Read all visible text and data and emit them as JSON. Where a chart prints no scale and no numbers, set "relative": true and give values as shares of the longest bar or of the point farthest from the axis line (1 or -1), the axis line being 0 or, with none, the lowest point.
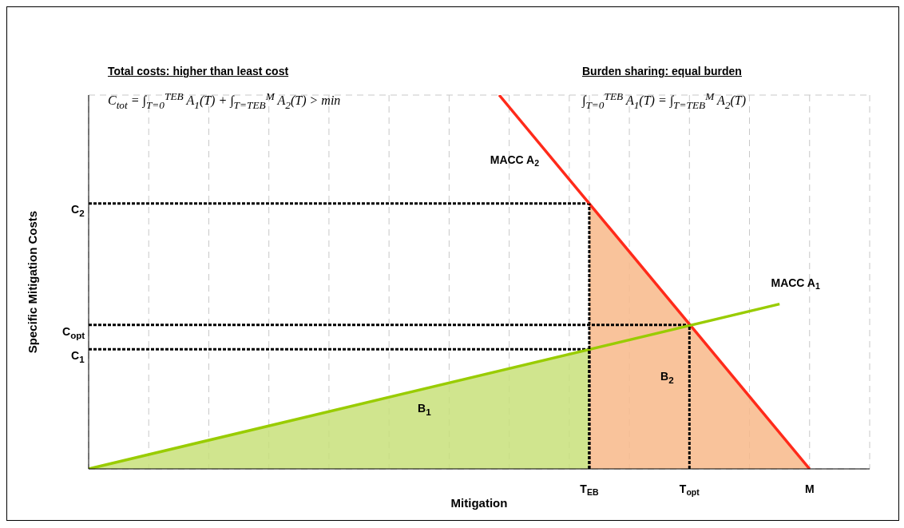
{
  "chart_data": {
    "type": "line",
    "relative": true,
    "xlabel": "Mitigation",
    "ylabel": "Specific Mitigation Costs",
    "grid": true,
    "legend": false,
    "categories": [
      null,
      null,
      null,
      null,
      null,
      null,
      null,
      null,
      null,
      null,
      null,
      null,
      null,
      null,
      null,
      null,
      null,
      null,
      null,
      null,
      null,
      null,
      null,
      null,
      null,
      null,
      null,
      null,
      null,
      null,
      null,
      null,
      null,
      null,
      null,
      null,
      null,
      null,
      null,
      null,
      null,
      null,
      null,
      null,
      null,
      null,
      null,
      null,
      null,
      null,
      "T$_{EB}$",
      null,
      null,
      null,
      null,
      null,
      null,
      null,
      null,
      null,
      "T$_{opt}$",
      null,
      null,
      null,
      null,
      null,
      null,
      null,
      null,
      null,
      null,
      null,
      "M",
      null,
      null,
      null,
      null,
      null,
      null
    ],
    "series": [
      {
        "type": "area",
        "color": "#c8e07a",
        "values": [
          0,
          null,
          null,
          null,
          null,
          null,
          null,
          null,
          null,
          null,
          null,
          null,
          null,
          null,
          null,
          null,
          null,
          null,
          null,
          null,
          null,
          null,
          null,
          null,
          null,
          null,
          null,
          null,
          null,
          null,
          null,
          null,
          null,
          null,
          null,
          null,
          null,
          null,
          null,
          null,
          null,
          null,
          null,
          null,
          null,
          null,
          null,
          null,
          null,
          null,
          0.32,
          null,
          null,
          null,
          null,
          null,
          null,
          null,
          null,
          null,
          null,
          null,
          null,
          null,
          null,
          null,
          null,
          null,
          null,
          null,
          null,
          null,
          null,
          null,
          null,
          null,
          null,
          null,
          null
        ]
      },
      {
        "type": "area",
        "color": "#f8b98a",
        "values": [
          null,
          null,
          null,
          null,
          null,
          null,
          null,
          null,
          null,
          null,
          null,
          null,
          null,
          null,
          null,
          null,
          null,
          null,
          null,
          null,
          null,
          null,
          null,
          null,
          null,
          null,
          null,
          null,
          null,
          null,
          null,
          null,
          null,
          null,
          null,
          null,
          null,
          null,
          null,
          null,
          null,
          null,
          null,
          null,
          null,
          null,
          null,
          null,
          null,
          null,
          0.71,
          null,
          null,
          null,
          null,
          null,
          null,
          null,
          null,
          null,
          null,
          null,
          null,
          null,
          null,
          null,
          null,
          null,
          null,
          null,
          null,
          null,
          0,
          null,
          null,
          null,
          null,
          null,
          null
        ]
      },
      {
        "line_style": "dashed",
        "color": "#000000",
        "values": [
          0.71,
          null,
          null,
          null,
          null,
          null,
          null,
          null,
          null,
          null,
          null,
          null,
          null,
          null,
          null,
          null,
          null,
          null,
          null,
          null,
          null,
          null,
          null,
          null,
          null,
          null,
          null,
          null,
          null,
          null,
          null,
          null,
          null,
          null,
          null,
          null,
          null,
          null,
          null,
          null,
          null,
          null,
          null,
          null,
          null,
          null,
          null,
          null,
          null,
          null,
          0.71,
          null,
          null,
          null,
          null,
          null,
          null,
          null,
          null,
          null,
          null,
          null,
          null,
          null,
          null,
          null,
          null,
          null,
          null,
          null,
          null,
          null,
          null,
          null,
          null,
          null,
          null,
          null,
          null
        ]
      },
      {
        "line_style": "dashed",
        "color": "#000000",
        "values": [
          0.385,
          null,
          null,
          null,
          null,
          null,
          null,
          null,
          null,
          null,
          null,
          null,
          null,
          null,
          null,
          null,
          null,
          null,
          null,
          null,
          null,
          null,
          null,
          null,
          null,
          null,
          null,
          null,
          null,
          null,
          null,
          null,
          null,
          null,
          null,
          null,
          null,
          null,
          null,
          null,
          null,
          null,
          null,
          null,
          null,
          null,
          null,
          null,
          null,
          null,
          null,
          null,
          null,
          null,
          null,
          null,
          null,
          null,
          null,
          null,
          0.385,
          null,
          null,
          null,
          null,
          null,
          null,
          null,
          null,
          null,
          null,
          null,
          null,
          null,
          null,
          null,
          null,
          null,
          null
        ]
      },
      {
        "line_style": "dashed",
        "color": "#000000",
        "values": [
          0.32,
          null,
          null,
          null,
          null,
          null,
          null,
          null,
          null,
          null,
          null,
          null,
          null,
          null,
          null,
          null,
          null,
          null,
          null,
          null,
          null,
          null,
          null,
          null,
          null,
          null,
          null,
          null,
          null,
          null,
          null,
          null,
          null,
          null,
          null,
          null,
          null,
          null,
          null,
          null,
          null,
          null,
          null,
          null,
          null,
          null,
          null,
          null,
          null,
          null,
          0.32,
          null,
          null,
          null,
          null,
          null,
          null,
          null,
          null,
          null,
          null,
          null,
          null,
          null,
          null,
          null,
          null,
          null,
          null,
          null,
          null,
          null,
          null,
          null,
          null,
          null,
          null,
          null,
          null
        ]
      },
      {
        "name": "MACC A$_{2}$",
        "color": "#ff2a1a",
        "values": [
          null,
          null,
          null,
          null,
          null,
          null,
          null,
          null,
          null,
          null,
          null,
          null,
          null,
          null,
          null,
          null,
          null,
          null,
          null,
          null,
          null,
          null,
          null,
          null,
          null,
          null,
          null,
          null,
          null,
          null,
          null,
          null,
          null,
          null,
          null,
          null,
          null,
          null,
          null,
          null,
          null,
          1,
          null,
          null,
          null,
          null,
          null,
          null,
          null,
          null,
          null,
          null,
          null,
          null,
          null,
          null,
          null,
          null,
          null,
          null,
          null,
          null,
          null,
          null,
          null,
          null,
          null,
          null,
          null,
          null,
          null,
          null,
          0,
          null,
          null,
          null,
          null,
          null,
          null
        ]
      },
      {
        "name": "MACC A$_{1}$",
        "color": "#99cc00",
        "values": [
          0,
          null,
          null,
          null,
          null,
          null,
          null,
          null,
          null,
          null,
          null,
          null,
          null,
          null,
          null,
          null,
          null,
          null,
          null,
          null,
          null,
          null,
          null,
          null,
          null,
          null,
          null,
          null,
          null,
          null,
          null,
          null,
          null,
          null,
          null,
          null,
          null,
          null,
          null,
          null,
          null,
          null,
          null,
          null,
          null,
          null,
          null,
          null,
          null,
          null,
          null,
          null,
          null,
          null,
          null,
          null,
          null,
          null,
          null,
          null,
          null,
          null,
          null,
          null,
          null,
          null,
          null,
          null,
          null,
          0.441,
          null,
          null,
          null,
          null,
          null,
          null,
          null,
          null,
          null
        ]
      }
    ],
    "annotations": [
      "Total costs: higher than least cost",
      "C$_{tot}$ = ∫$_{T=0}$$^{TEB}$ A$_{1}$(T) + ∫$_{T=TEB}$$^{M}$ A$_{2}$(T) > min",
      "Burden sharing: equal burden",
      "∫$_{T=0}$$^{TEB}$ A$_{1}$(T) = ∫$_{T=TEB}$$^{M}$ A$_{2}$(T)",
      "B$_{1}$",
      "B$_{2}$",
      "C$_{1}$",
      "C$_{opt}$",
      "C$_{2}$"
    ]
  }
}
